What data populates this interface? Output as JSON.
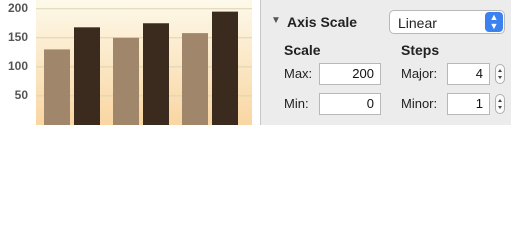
{
  "chart": {
    "type": "bar",
    "ylim": [
      0,
      215
    ],
    "yticks": [
      50,
      100,
      150,
      200
    ],
    "grid": true,
    "series": [
      {
        "color": "#a0866b",
        "values": [
          130,
          150,
          158
        ]
      },
      {
        "color": "#3b2a1e",
        "values": [
          168,
          175,
          195
        ]
      }
    ]
  },
  "panel": {
    "section_title": "Axis Scale",
    "scale_type": "Linear",
    "scale_heading": "Scale",
    "steps_heading": "Steps",
    "fields": {
      "max": {
        "label": "Max:",
        "value": 200
      },
      "min": {
        "label": "Min:",
        "value": 0
      },
      "major": {
        "label": "Major:",
        "value": 4
      },
      "minor": {
        "label": "Minor:",
        "value": 1
      }
    }
  }
}
